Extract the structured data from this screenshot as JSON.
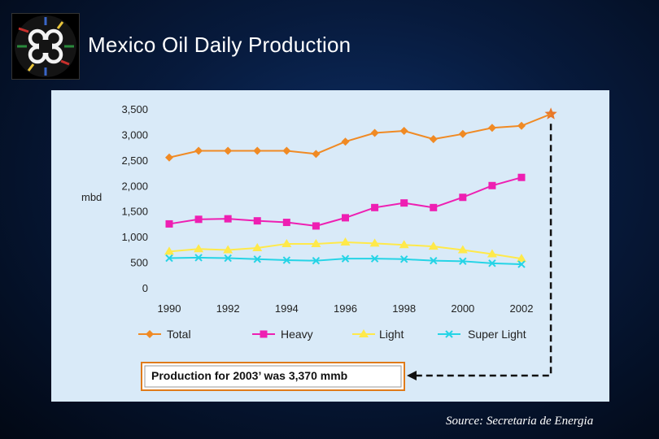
{
  "slide": {
    "title": "Mexico Oil Daily Production",
    "source": "Source: Secretaria de Energia"
  },
  "callout": {
    "text": "Production for 2003’ was 3,370 mmb"
  },
  "colors": {
    "total": "#f08a24",
    "heavy": "#ee1fb2",
    "light": "#ffe94a",
    "super_light": "#25d4e6",
    "callout_border": "#e07b1a",
    "star": "#e8782a"
  },
  "chart_data": {
    "type": "line",
    "ylabel": "mbd",
    "xlabel": "",
    "ylim": [
      0,
      3500
    ],
    "yticks": [
      0,
      500,
      1000,
      1500,
      2000,
      2500,
      3000,
      3500
    ],
    "ytick_labels": [
      "0",
      "500",
      "1,000",
      "1,500",
      "2,000",
      "2,500",
      "3,000",
      "3,500"
    ],
    "xticks": [
      1990,
      1992,
      1994,
      1996,
      1998,
      2000,
      2002
    ],
    "xtick_labels": [
      "1990",
      "1992",
      "1994",
      "1996",
      "1998",
      "2000",
      "2002"
    ],
    "x": [
      1990,
      1991,
      1992,
      1993,
      1994,
      1995,
      1996,
      1997,
      1998,
      1999,
      2000,
      2001,
      2002
    ],
    "legend_position": "bottom",
    "grid": false,
    "series": [
      {
        "name": "Total",
        "color": "#f08a24",
        "marker": "diamond",
        "values": [
          2550,
          2680,
          2680,
          2680,
          2680,
          2620,
          2860,
          3030,
          3070,
          2910,
          3010,
          3130,
          3170
        ]
      },
      {
        "name": "Heavy",
        "color": "#ee1fb2",
        "marker": "square",
        "values": [
          1250,
          1340,
          1350,
          1310,
          1280,
          1210,
          1370,
          1570,
          1660,
          1570,
          1770,
          2000,
          2160
        ]
      },
      {
        "name": "Light",
        "color": "#ffe94a",
        "marker": "triangle",
        "values": [
          710,
          760,
          740,
          780,
          860,
          860,
          890,
          870,
          840,
          810,
          740,
          660,
          570
        ]
      },
      {
        "name": "Super Light",
        "color": "#25d4e6",
        "marker": "x",
        "values": [
          580,
          590,
          580,
          560,
          540,
          530,
          570,
          570,
          560,
          530,
          520,
          480,
          460
        ]
      }
    ],
    "highlight": {
      "x": 2003,
      "y": 3400,
      "marker": "star"
    }
  }
}
